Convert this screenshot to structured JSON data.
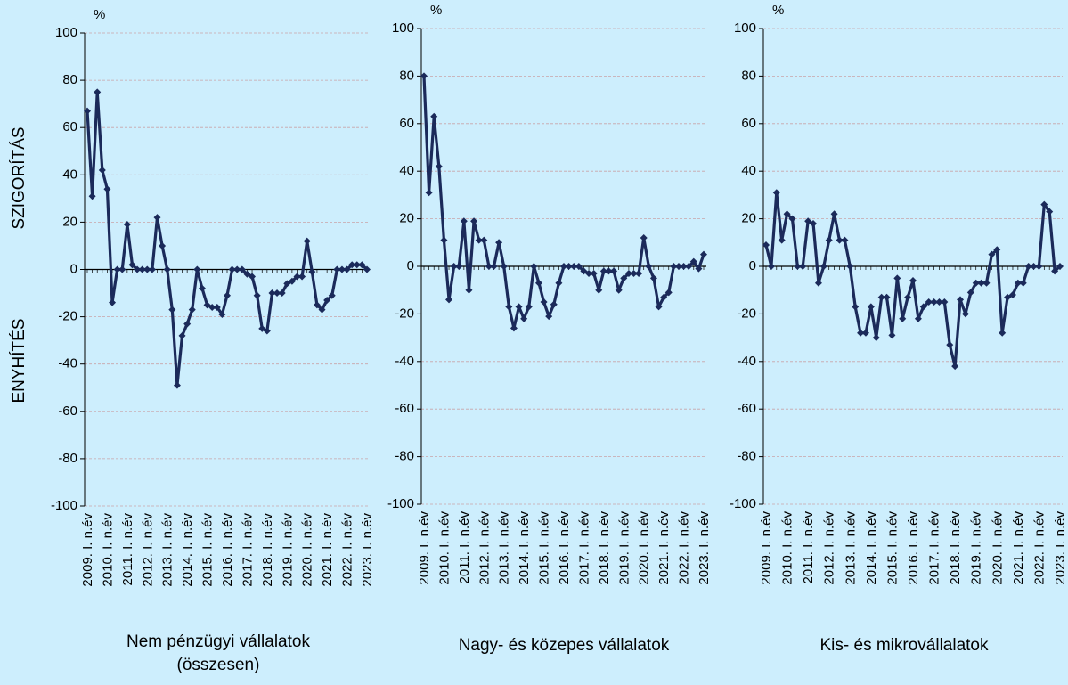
{
  "chart_data": [
    {
      "type": "line",
      "title": "Nem pénzügyi vállalatok (összesen)",
      "unit_label": "%",
      "y_label_top": "SZIGORÍTÁS",
      "y_label_bottom": "ENYHÍTÉS",
      "categories": [
        "2009. I. n.év",
        null,
        null,
        null,
        "2010. I. n.év",
        null,
        null,
        null,
        "2011. I. n.év",
        null,
        null,
        null,
        "2012. I. n.év",
        null,
        null,
        null,
        "2013. I. n.év",
        null,
        null,
        null,
        "2014. I. n.év",
        null,
        null,
        null,
        "2015. I. n.év",
        null,
        null,
        null,
        "2016. I. n.év",
        null,
        null,
        null,
        "2017. I. n.év",
        null,
        null,
        null,
        "2018. I. n.év",
        null,
        null,
        null,
        "2019. I. n.év",
        null,
        null,
        null,
        "2020. I. n.év",
        null,
        null,
        null,
        "2021. I. n.év",
        null,
        null,
        null,
        "2022. I. n.év",
        null,
        null,
        null,
        "2023. I. n.év"
      ],
      "series": [
        {
          "color": "#1b2a5a",
          "values": [
            67,
            31,
            75,
            42,
            34,
            -14,
            0,
            0,
            19,
            2,
            0,
            0,
            0,
            0,
            22,
            10,
            0,
            -17,
            -49,
            -28,
            -23,
            -17,
            0,
            -8,
            -15,
            -16,
            -16,
            -19,
            -11,
            0,
            0,
            0,
            -2,
            -3,
            -11,
            -25,
            -26,
            -10,
            -10,
            -10,
            -6,
            -5,
            -3,
            -3,
            12,
            -1,
            -15,
            -17,
            -13,
            -11,
            0,
            0,
            0,
            2,
            2,
            2,
            0
          ]
        }
      ],
      "ylim": [
        -100,
        100
      ],
      "yticks": [
        -100,
        -80,
        -60,
        -40,
        -20,
        0,
        20,
        40,
        60,
        80,
        100
      ],
      "grid": true
    },
    {
      "type": "line",
      "title": "Nagy- és közepes vállalatok",
      "unit_label": "%",
      "categories": [
        "2009. I. n.év",
        null,
        null,
        null,
        "2010. I. n.év",
        null,
        null,
        null,
        "2011. I. n.év",
        null,
        null,
        null,
        "2012. I. n.év",
        null,
        null,
        null,
        "2013. I. n.év",
        null,
        null,
        null,
        "2014. I. n.év",
        null,
        null,
        null,
        "2015. I. n.év",
        null,
        null,
        null,
        "2016. I. n.év",
        null,
        null,
        null,
        "2017. I. n.év",
        null,
        null,
        null,
        "2018. I. n.év",
        null,
        null,
        null,
        "2019. I. n.év",
        null,
        null,
        null,
        "2020. I. n.év",
        null,
        null,
        null,
        "2021. I. n.év",
        null,
        null,
        null,
        "2022. I. n.év",
        null,
        null,
        null,
        "2023. I. n.év"
      ],
      "series": [
        {
          "color": "#1b2a5a",
          "values": [
            80,
            31,
            63,
            42,
            11,
            -14,
            0,
            0,
            19,
            -10,
            19,
            11,
            11,
            0,
            0,
            10,
            0,
            -17,
            -26,
            -17,
            -22,
            -17,
            0,
            -7,
            -15,
            -21,
            -16,
            -7,
            0,
            0,
            0,
            0,
            -2,
            -3,
            -3,
            -10,
            -2,
            -2,
            -2,
            -10,
            -5,
            -3,
            -3,
            -3,
            12,
            0,
            -5,
            -17,
            -13,
            -11,
            0,
            0,
            0,
            0,
            2,
            -1,
            5
          ]
        }
      ],
      "ylim": [
        -100,
        100
      ],
      "yticks": [
        -100,
        -80,
        -60,
        -40,
        -20,
        0,
        20,
        40,
        60,
        80,
        100
      ],
      "grid": true
    },
    {
      "type": "line",
      "title": "Kis- és mikrovállalatok",
      "unit_label": "%",
      "categories": [
        "2009. I. n.év",
        null,
        null,
        null,
        "2010. I. n.év",
        null,
        null,
        null,
        "2011. I. n.év",
        null,
        null,
        null,
        "2012. I. n.év",
        null,
        null,
        null,
        "2013. I. n.év",
        null,
        null,
        null,
        "2014. I. n.év",
        null,
        null,
        null,
        "2015. I. n.év",
        null,
        null,
        null,
        "2016. I. n.év",
        null,
        null,
        null,
        "2017. I. n.év",
        null,
        null,
        null,
        "2018. I. n.év",
        null,
        null,
        null,
        "2019. I. n.év",
        null,
        null,
        null,
        "2020. I. n.év",
        null,
        null,
        null,
        "2021. I. n.év",
        null,
        null,
        null,
        "2022. I. n.év",
        null,
        null,
        null,
        "2023. I. n.év"
      ],
      "series": [
        {
          "color": "#1b2a5a",
          "values": [
            9,
            0,
            31,
            11,
            22,
            20,
            0,
            0,
            19,
            18,
            -7,
            0,
            11,
            22,
            11,
            11,
            0,
            -17,
            -28,
            -28,
            -17,
            -30,
            -13,
            -13,
            -29,
            -5,
            -22,
            -13,
            -6,
            -22,
            -17,
            -15,
            -15,
            -15,
            -15,
            -33,
            -42,
            -14,
            -20,
            -11,
            -7,
            -7,
            -7,
            5,
            7,
            -28,
            -13,
            -12,
            -7,
            -7,
            0,
            0,
            0,
            26,
            23,
            -2,
            0
          ]
        }
      ],
      "ylim": [
        -100,
        100
      ],
      "yticks": [
        -100,
        -80,
        -60,
        -40,
        -20,
        0,
        20,
        40,
        60,
        80,
        100
      ],
      "grid": true
    }
  ]
}
